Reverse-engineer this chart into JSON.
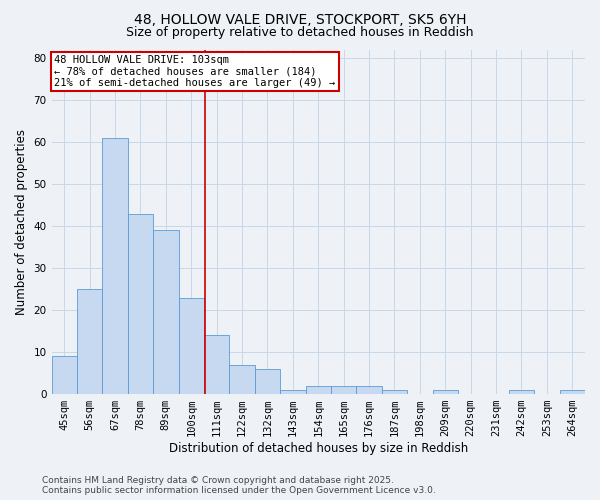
{
  "title_line1": "48, HOLLOW VALE DRIVE, STOCKPORT, SK5 6YH",
  "title_line2": "Size of property relative to detached houses in Reddish",
  "xlabel": "Distribution of detached houses by size in Reddish",
  "ylabel": "Number of detached properties",
  "categories": [
    "45sqm",
    "56sqm",
    "67sqm",
    "78sqm",
    "89sqm",
    "100sqm",
    "111sqm",
    "122sqm",
    "132sqm",
    "143sqm",
    "154sqm",
    "165sqm",
    "176sqm",
    "187sqm",
    "198sqm",
    "209sqm",
    "220sqm",
    "231sqm",
    "242sqm",
    "253sqm",
    "264sqm"
  ],
  "values": [
    9,
    25,
    61,
    43,
    39,
    23,
    14,
    7,
    6,
    1,
    2,
    2,
    2,
    1,
    0,
    1,
    0,
    0,
    1,
    0,
    1
  ],
  "bar_color": "#c6d9f0",
  "bar_edge_color": "#5b9bd5",
  "red_line_x": 5.545,
  "red_line_color": "#cc0000",
  "annotation_line1": "48 HOLLOW VALE DRIVE: 103sqm",
  "annotation_line2": "← 78% of detached houses are smaller (184)",
  "annotation_line3": "21% of semi-detached houses are larger (49) →",
  "annotation_box_color": "#ffffff",
  "annotation_box_edge": "#cc0000",
  "ylim": [
    0,
    82
  ],
  "yticks": [
    0,
    10,
    20,
    30,
    40,
    50,
    60,
    70,
    80
  ],
  "grid_color": "#c8d8e8",
  "background_color": "#eef2f7",
  "footnote": "Contains HM Land Registry data © Crown copyright and database right 2025.\nContains public sector information licensed under the Open Government Licence v3.0.",
  "title_fontsize": 10,
  "subtitle_fontsize": 9,
  "axis_label_fontsize": 8.5,
  "tick_fontsize": 7.5,
  "annotation_fontsize": 7.5,
  "footnote_fontsize": 6.5
}
